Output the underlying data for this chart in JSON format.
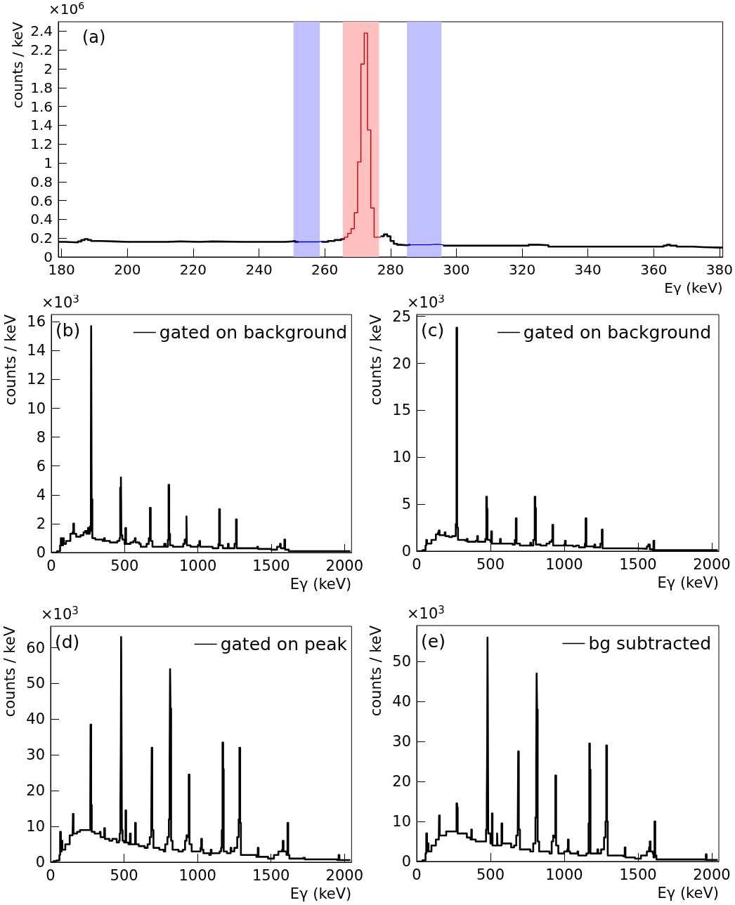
{
  "chart_data": [
    {
      "type": "step",
      "xlabel": "Eγ (keV)",
      "ylabel": "counts / keV",
      "annotations": [
        "(a)",
        "×10$^{6}$"
      ],
      "xlim": [
        179,
        381
      ],
      "ylim": [
        0,
        2.5
      ],
      "xticks": [
        180,
        200,
        220,
        240,
        260,
        280,
        300,
        320,
        340,
        360,
        380
      ],
      "yticks": [
        0,
        0.2,
        0.4,
        0.6,
        0.8,
        1,
        1.2,
        1.4,
        1.6,
        1.8,
        2,
        2.2,
        2.4
      ],
      "bands": [
        {
          "axis": "x",
          "from": 250.5,
          "to": 258.5,
          "color": "#c0c0ff"
        },
        {
          "axis": "x",
          "from": 265.5,
          "to": 276.5,
          "color": "#ffc0c0"
        },
        {
          "axis": "x",
          "from": 285,
          "to": 295.5,
          "color": "#c0c0ff"
        }
      ],
      "series": [
        {
          "color": "#000000",
          "x": [
            179,
            181,
            185,
            186,
            187,
            188,
            189,
            192,
            196,
            200,
            212,
            216,
            222,
            226,
            235,
            240,
            248,
            250,
            251,
            252,
            259,
            261,
            263,
            265,
            266,
            277,
            278,
            279,
            280,
            281,
            282,
            283,
            285,
            286,
            296,
            310,
            320,
            322,
            325,
            328,
            340,
            345,
            360,
            363,
            364,
            365,
            367,
            372,
            375,
            380,
            381
          ],
          "values": [
            0.16,
            0.155,
            0.165,
            0.18,
            0.19,
            0.18,
            0.17,
            0.165,
            0.16,
            0.16,
            0.165,
            0.16,
            0.165,
            0.16,
            0.16,
            0.16,
            0.165,
            0.17,
            0.16,
            null,
            0.16,
            0.17,
            0.18,
            0.19,
            null,
            0.22,
            0.24,
            0.22,
            0.17,
            0.14,
            0.13,
            0.125,
            0.13,
            null,
            0.12,
            0.12,
            0.12,
            0.13,
            0.125,
            0.11,
            0.11,
            0.11,
            0.11,
            0.12,
            0.13,
            0.12,
            0.11,
            0.105,
            0.1,
            0.1,
            0.1
          ]
        },
        {
          "color": "#0000cc",
          "x": [
            251,
            255,
            258,
            259,
            260,
            285,
            290,
            292,
            294,
            296
          ],
          "values": [
            0.16,
            0.16,
            0.165,
            0.16,
            null,
            0.13,
            0.13,
            0.135,
            0.13,
            0.12
          ]
        },
        {
          "color": "#cc0000",
          "x": [
            265,
            266,
            267,
            268,
            269,
            270,
            271,
            272,
            273,
            274,
            275,
            276,
            277
          ],
          "values": [
            0.19,
            0.21,
            0.25,
            0.3,
            0.47,
            1.01,
            2.05,
            2.38,
            1.35,
            0.52,
            0.21,
            0.21,
            0.22
          ]
        }
      ]
    },
    {
      "type": "step",
      "xlabel": "Eγ (keV)",
      "ylabel": "counts / keV",
      "annotations": [
        "(b)",
        "×10$^{3}$"
      ],
      "xlim": [
        0,
        2048
      ],
      "ylim": [
        0,
        16.5
      ],
      "xticks": [
        0,
        500,
        1000,
        1500,
        2000
      ],
      "yticks": [
        0,
        2,
        4,
        6,
        8,
        10,
        12,
        14,
        16
      ],
      "legend": "top right",
      "series": [
        {
          "name": "gated on background",
          "color": "#000000",
          "x": [
            0,
            40,
            60,
            65,
            70,
            80,
            85,
            100,
            130,
            145,
            150,
            155,
            170,
            200,
            220,
            230,
            240,
            250,
            258,
            262,
            266,
            270,
            272,
            275,
            280,
            300,
            350,
            360,
            365,
            400,
            450,
            465,
            470,
            475,
            478,
            485,
            500,
            505,
            510,
            540,
            560,
            570,
            575,
            600,
            610,
            650,
            665,
            673,
            678,
            690,
            760,
            770,
            780,
            795,
            800,
            804,
            810,
            830,
            880,
            900,
            910,
            915,
            922,
            925,
            950,
            1000,
            1010,
            1015,
            1100,
            1140,
            1145,
            1150,
            1170,
            1205,
            1210,
            1250,
            1260,
            1265,
            1400,
            1405,
            1410,
            1500,
            1540,
            1560,
            1565,
            1590,
            1595,
            1620,
            2040
          ],
          "values": [
            0,
            0.1,
            0.5,
            1,
            0.5,
            1,
            0.6,
            0.8,
            1.3,
            1.4,
            2,
            1.3,
            1.1,
            1.2,
            1.4,
            1.5,
            1.3,
            1.7,
            1.3,
            1.8,
            1.5,
            6.7,
            15.7,
            3.7,
            1,
            0.9,
            0.8,
            1,
            0.8,
            0.7,
            0.8,
            1,
            4.5,
            5.2,
            1.2,
            0.9,
            0.6,
            1.7,
            0.6,
            0.7,
            0.8,
            1,
            0.7,
            0.6,
            0.4,
            0.6,
            1,
            3.1,
            0.8,
            0.4,
            0.4,
            0.6,
            0.4,
            0.9,
            4.7,
            1.3,
            0.5,
            0.4,
            0.4,
            0.6,
            0.9,
            0.7,
            2.5,
            0.5,
            0.4,
            0.5,
            0.8,
            0.4,
            0.3,
            0.6,
            3,
            0.5,
            0.3,
            0.6,
            0.3,
            0.6,
            2.3,
            0.3,
            0.3,
            0.4,
            0.25,
            0.2,
            0.4,
            0.6,
            0.3,
            0.9,
            0.2,
            0.1,
            0.1
          ]
        }
      ]
    },
    {
      "type": "step",
      "xlabel": "Eγ (keV)",
      "ylabel": "counts / keV",
      "annotations": [
        "(c)",
        "×10$^{3}$"
      ],
      "xlim": [
        0,
        2048
      ],
      "ylim": [
        0,
        25.2
      ],
      "xticks": [
        0,
        500,
        1000,
        1500,
        2000
      ],
      "yticks": [
        0,
        5,
        10,
        15,
        20,
        25
      ],
      "legend": "top right",
      "series": [
        {
          "name": "gated on background",
          "color": "#000000",
          "x": [
            0,
            40,
            60,
            65,
            70,
            100,
            130,
            145,
            150,
            155,
            180,
            190,
            195,
            220,
            240,
            260,
            265,
            270,
            274,
            280,
            330,
            340,
            345,
            400,
            410,
            415,
            450,
            465,
            472,
            476,
            480,
            500,
            505,
            510,
            540,
            560,
            565,
            570,
            650,
            665,
            672,
            677,
            700,
            760,
            770,
            775,
            790,
            800,
            804,
            808,
            840,
            880,
            900,
            915,
            920,
            925,
            960,
            1000,
            1005,
            1010,
            1060,
            1080,
            1100,
            1140,
            1145,
            1150,
            1200,
            1205,
            1210,
            1245,
            1255,
            1260,
            1400,
            1500,
            1560,
            1570,
            1580,
            1600,
            1605,
            1610,
            2040
          ],
          "values": [
            0,
            0.1,
            0.6,
            1.2,
            0.8,
            1.2,
            1.8,
            2,
            2.2,
            1.7,
            1.7,
            2,
            1.6,
            1.5,
            1.6,
            1.6,
            2.9,
            23.8,
            2.5,
            1.2,
            1.1,
            1.3,
            1,
            1.1,
            1.6,
            1,
            1,
            1.3,
            5.8,
            4.5,
            1.2,
            1,
            2.1,
            0.8,
            0.8,
            0.8,
            1.3,
            0.8,
            0.7,
            1.2,
            3.5,
            0.8,
            0.6,
            0.6,
            0.9,
            0.6,
            1.2,
            5.8,
            4.6,
            0.7,
            0.6,
            0.8,
            1,
            1.2,
            2.8,
            0.6,
            0.6,
            0.7,
            1.1,
            0.6,
            0.5,
            0.6,
            0.4,
            0.8,
            3.5,
            0.5,
            0.4,
            0.7,
            0.4,
            0.8,
            2.3,
            0.3,
            0.3,
            0.25,
            0.5,
            0.7,
            0.2,
            0.1,
            1.1,
            0.1,
            0.1
          ]
        }
      ]
    },
    {
      "type": "step",
      "xlabel": "Eγ (keV)",
      "ylabel": "counts / keV",
      "annotations": [
        "(d)",
        "×10$^{3}$"
      ],
      "xlim": [
        0,
        2048
      ],
      "ylim": [
        0,
        66
      ],
      "xticks": [
        0,
        500,
        1000,
        1500,
        2000
      ],
      "yticks": [
        0,
        10,
        20,
        30,
        40,
        50,
        60
      ],
      "legend": "top right",
      "series": [
        {
          "name": "gated on peak",
          "color": "#000000",
          "x": [
            0,
            20,
            40,
            60,
            65,
            70,
            75,
            80,
            100,
            130,
            150,
            152,
            156,
            180,
            200,
            240,
            265,
            270,
            272,
            276,
            280,
            300,
            330,
            335,
            340,
            360,
            365,
            370,
            400,
            420,
            450,
            465,
            470,
            475,
            478,
            480,
            482,
            485,
            490,
            500,
            510,
            514,
            530,
            540,
            545,
            570,
            575,
            580,
            600,
            640,
            660,
            675,
            685,
            688,
            692,
            700,
            740,
            770,
            780,
            795,
            805,
            810,
            813,
            816,
            820,
            830,
            870,
            900,
            915,
            925,
            935,
            940,
            945,
            960,
            1000,
            1020,
            1025,
            1030,
            1040,
            1080,
            1090,
            1095,
            1150,
            1160,
            1165,
            1170,
            1174,
            1178,
            1200,
            1225,
            1230,
            1250,
            1270,
            1280,
            1285,
            1290,
            1295,
            1350,
            1400,
            1410,
            1415,
            1480,
            1520,
            1550,
            1575,
            1580,
            1585,
            1600,
            1605,
            1612,
            1617,
            1625,
            1700,
            1720,
            1730,
            1950,
            1960,
            1965,
            2040
          ],
          "values": [
            0,
            0.3,
            0.5,
            2,
            8.5,
            3,
            6,
            3.5,
            5,
            7.5,
            8,
            13.5,
            8,
            8.5,
            9,
            9,
            9,
            16,
            38.5,
            16,
            8.5,
            8,
            8,
            8.5,
            7,
            7,
            9.5,
            6.5,
            6,
            6.5,
            5.5,
            6,
            8,
            16,
            34,
            63,
            46,
            9,
            6,
            5.5,
            14.5,
            5.5,
            5,
            8,
            5,
            5,
            11,
            5,
            4.5,
            4,
            5,
            7,
            9,
            32,
            9,
            4,
            3.5,
            3,
            5,
            7,
            12,
            28,
            54,
            43,
            6,
            3.5,
            3,
            3.5,
            6,
            7.5,
            7,
            24.5,
            5,
            3,
            3,
            4,
            6.5,
            3.5,
            2.5,
            2,
            3.5,
            2.5,
            3,
            4,
            9,
            33.5,
            26,
            3,
            2.5,
            4,
            3,
            4,
            7,
            12,
            32,
            11,
            2,
            2,
            1.5,
            4,
            1.5,
            1,
            2,
            3,
            3.5,
            6,
            3,
            3,
            2,
            11,
            2,
            1,
            1,
            1.2,
            0.8,
            0.6,
            2,
            0.6,
            0.5
          ]
        }
      ]
    },
    {
      "type": "step",
      "xlabel": "Eγ (keV)",
      "ylabel": "counts / keV",
      "annotations": [
        "(e)",
        "×10$^{3}$"
      ],
      "xlim": [
        0,
        2048
      ],
      "ylim": [
        0,
        59
      ],
      "xticks": [
        0,
        500,
        1000,
        1500,
        2000
      ],
      "yticks": [
        0,
        10,
        20,
        30,
        40,
        50
      ],
      "legend": "top right",
      "series": [
        {
          "name": "bg subtracted",
          "color": "#000000",
          "x": [
            0,
            40,
            60,
            65,
            70,
            75,
            80,
            100,
            130,
            150,
            152,
            156,
            200,
            250,
            265,
            270,
            274,
            278,
            300,
            340,
            365,
            370,
            374,
            400,
            450,
            465,
            470,
            475,
            478,
            480,
            482,
            485,
            500,
            510,
            514,
            540,
            545,
            548,
            575,
            580,
            600,
            640,
            660,
            675,
            685,
            688,
            692,
            700,
            770,
            790,
            805,
            810,
            813,
            816,
            820,
            830,
            900,
            915,
            925,
            935,
            940,
            945,
            960,
            1000,
            1020,
            1025,
            1030,
            1040,
            1090,
            1095,
            1150,
            1165,
            1170,
            1174,
            1178,
            1225,
            1230,
            1250,
            1270,
            1280,
            1285,
            1290,
            1295,
            1350,
            1400,
            1410,
            1415,
            1480,
            1520,
            1560,
            1575,
            1580,
            1585,
            1600,
            1605,
            1612,
            1617,
            1625,
            1700,
            1950,
            1960,
            1965,
            2040
          ],
          "values": [
            0,
            0.3,
            2,
            7,
            2.5,
            4.5,
            2.5,
            4,
            5.5,
            6,
            11.5,
            6.5,
            7.5,
            7.5,
            7.5,
            14.5,
            13.5,
            7,
            7,
            6,
            5.5,
            8,
            5.5,
            5,
            5,
            5,
            8,
            14,
            30,
            56,
            41,
            7,
            4.5,
            12,
            4,
            4,
            7,
            4,
            9.5,
            4.5,
            4.5,
            3.5,
            4,
            6.5,
            8,
            27.5,
            8,
            3,
            2.5,
            4.5,
            11,
            24.5,
            47,
            38,
            5,
            2.5,
            2,
            5,
            6.5,
            6,
            21.5,
            4,
            2,
            2.5,
            3,
            5.5,
            2.5,
            2,
            2.5,
            1.5,
            2,
            9.5,
            29.5,
            23,
            2,
            3,
            2,
            3,
            6,
            10,
            29,
            10,
            1.5,
            1.5,
            1.3,
            3.5,
            1,
            0.7,
            1.5,
            2.5,
            3.5,
            5,
            2.5,
            2,
            1,
            10,
            1.5,
            0.5,
            0.5,
            0.4,
            1.8,
            0.4,
            0.3
          ]
        }
      ]
    }
  ]
}
